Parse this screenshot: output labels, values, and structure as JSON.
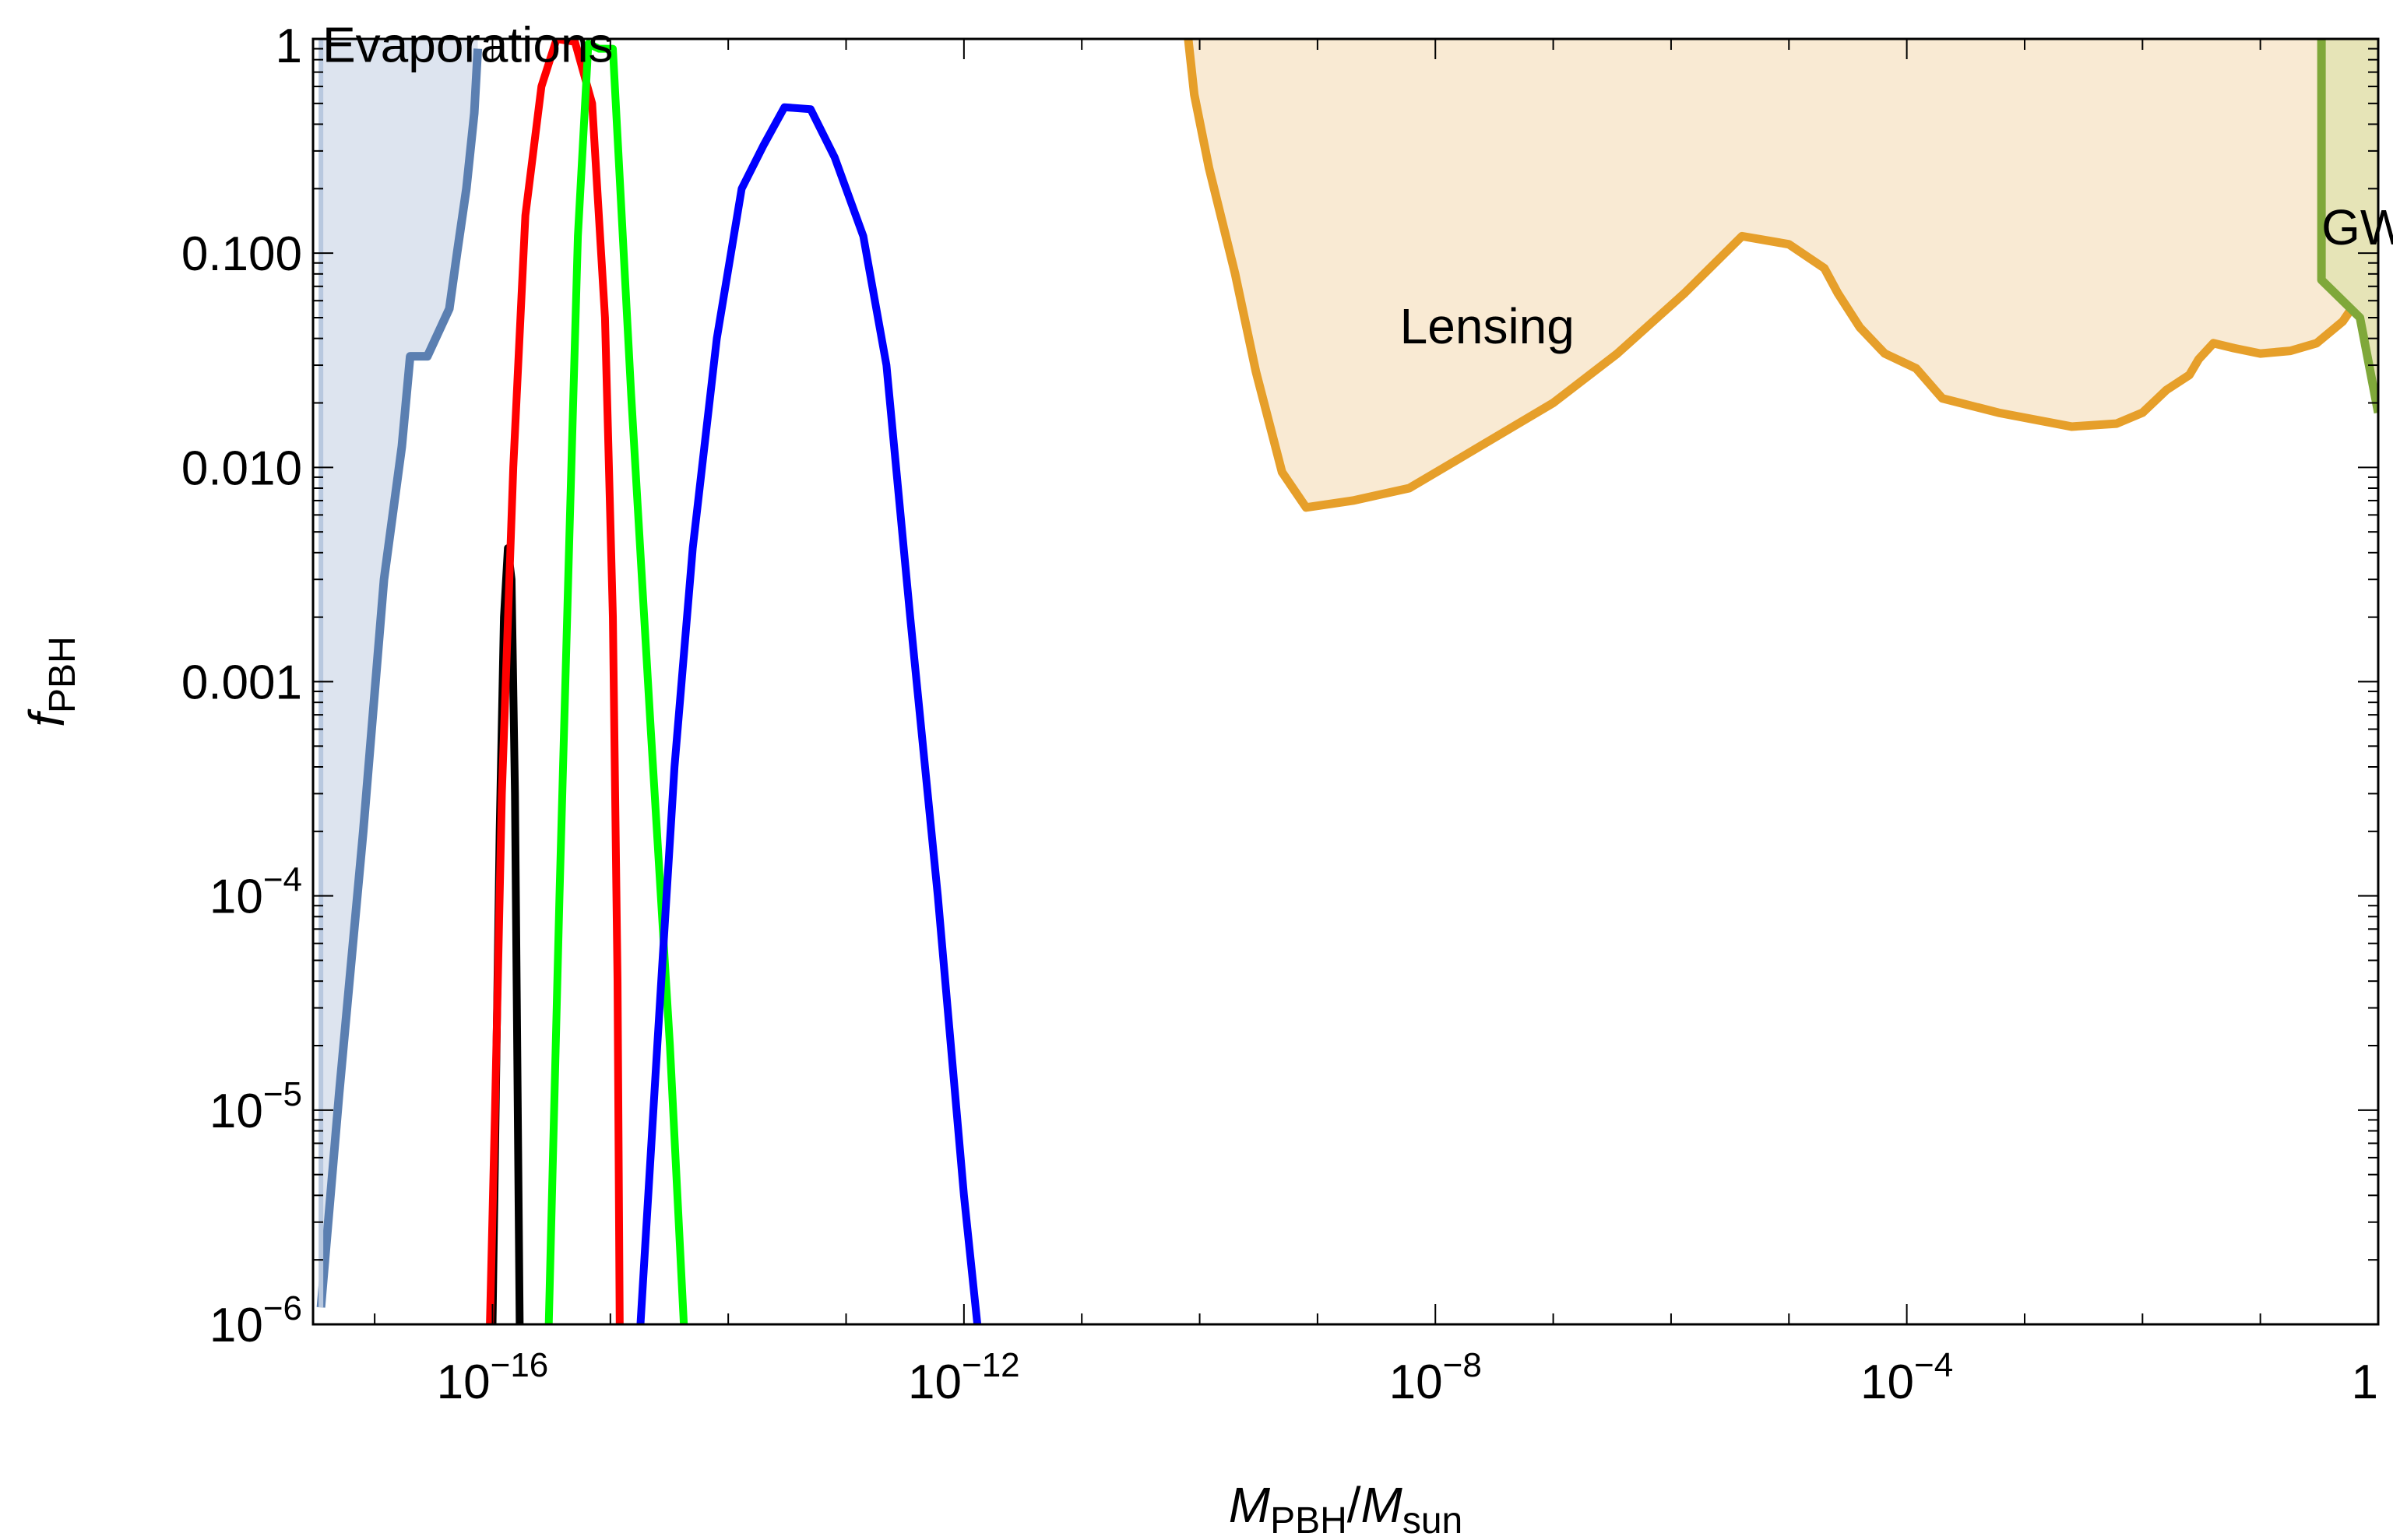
{
  "chart_data": {
    "type": "line",
    "xscale": "log",
    "yscale": "log",
    "xlim": [
      3e-18,
      1
    ],
    "ylim": [
      1e-06,
      1
    ],
    "x_ticks": [
      {
        "value": 1e-16,
        "base": "10",
        "exp": "−16"
      },
      {
        "value": 1e-12,
        "base": "10",
        "exp": "−12"
      },
      {
        "value": 1e-08,
        "base": "10",
        "exp": "−8"
      },
      {
        "value": 0.0001,
        "base": "10",
        "exp": "−4"
      },
      {
        "value": 1,
        "base": "1",
        "exp": ""
      }
    ],
    "y_ticks": [
      {
        "value": 1,
        "base": "1",
        "exp": ""
      },
      {
        "value": 0.1,
        "base": "0.100",
        "exp": ""
      },
      {
        "value": 0.01,
        "base": "0.010",
        "exp": ""
      },
      {
        "value": 0.001,
        "base": "0.001",
        "exp": ""
      },
      {
        "value": 0.0001,
        "base": "10",
        "exp": "−4"
      },
      {
        "value": 1e-05,
        "base": "10",
        "exp": "−5"
      },
      {
        "value": 1e-06,
        "base": "10",
        "exp": "−6"
      }
    ],
    "xlabel": {
      "m1": "M",
      "sub1": "PBH",
      "slash": "/",
      "m2": "M",
      "sub2": "sun"
    },
    "ylabel": {
      "main": "f",
      "sub": "PBH"
    },
    "regions": [
      {
        "name": "Evaporations",
        "label": "Evaporations",
        "label_at": [
          3.6e-18,
          0.78
        ],
        "color": "#5b7fb1",
        "fill": "#dde4ef",
        "boundary": [
          [
            3.5e-18,
            1.2e-06
          ],
          [
            5e-18,
            1.2e-05
          ],
          [
            8e-18,
            0.0002
          ],
          [
            1.2e-17,
            0.003
          ],
          [
            1.7e-17,
            0.0125
          ],
          [
            2e-17,
            0.033
          ],
          [
            2.8e-17,
            0.033
          ],
          [
            4.3e-17,
            0.055
          ],
          [
            5e-17,
            0.1
          ],
          [
            6e-17,
            0.2
          ],
          [
            7e-17,
            0.45
          ],
          [
            7.5e-17,
            0.9
          ]
        ]
      },
      {
        "name": "Lensing",
        "label": "Lensing",
        "label_at": [
          5e-09,
          0.038
        ],
        "color": "#e69f2a",
        "fill": "#f9ead3",
        "boundary": [
          [
            8e-11,
            1.0
          ],
          [
            9e-11,
            0.55
          ],
          [
            1.2e-10,
            0.25
          ],
          [
            2e-10,
            0.08
          ],
          [
            3e-10,
            0.028
          ],
          [
            5e-10,
            0.0095
          ],
          [
            8e-10,
            0.0065
          ],
          [
            2e-09,
            0.007
          ],
          [
            6e-09,
            0.008
          ],
          [
            1.6e-08,
            0.011
          ],
          [
            1e-07,
            0.02
          ],
          [
            3.5e-07,
            0.034
          ],
          [
            1.3e-06,
            0.065
          ],
          [
            4e-06,
            0.12
          ],
          [
            1e-05,
            0.11
          ],
          [
            2e-05,
            0.085
          ],
          [
            2.6e-05,
            0.065
          ],
          [
            4e-05,
            0.045
          ],
          [
            6.5e-05,
            0.034
          ],
          [
            0.00012,
            0.029
          ],
          [
            0.0002,
            0.021
          ],
          [
            0.0006,
            0.018
          ],
          [
            0.0025,
            0.0155
          ],
          [
            0.006,
            0.016
          ],
          [
            0.01,
            0.018
          ],
          [
            0.016,
            0.023
          ],
          [
            0.025,
            0.027
          ],
          [
            0.03,
            0.032
          ],
          [
            0.04,
            0.038
          ],
          [
            0.06,
            0.036
          ],
          [
            0.1,
            0.034
          ],
          [
            0.18,
            0.035
          ],
          [
            0.3,
            0.038
          ],
          [
            0.5,
            0.048
          ],
          [
            0.8,
            0.07
          ],
          [
            1,
            0.1
          ]
        ]
      },
      {
        "name": "GW",
        "label": "GW",
        "label_at": [
          0.33,
          0.11
        ],
        "color": "#7fa83a",
        "fill": "#e6e4b7",
        "boundary": [
          [
            0.33,
            1.0
          ],
          [
            0.33,
            0.075
          ],
          [
            0.7,
            0.05
          ],
          [
            1.0,
            0.018
          ]
        ]
      }
    ],
    "series": [
      {
        "color": "#000000",
        "points": [
          [
            1e-16,
            1e-06
          ],
          [
            1.15e-16,
            0.0002
          ],
          [
            1.25e-16,
            0.002
          ],
          [
            1.35e-16,
            0.0042
          ],
          [
            1.45e-16,
            0.003
          ],
          [
            1.55e-16,
            0.0003
          ],
          [
            1.7e-16,
            1e-06
          ]
        ]
      },
      {
        "color": "#ff0000",
        "points": [
          [
            9.5e-17,
            1e-06
          ],
          [
            1.05e-16,
            1e-05
          ],
          [
            1.2e-16,
            0.0003
          ],
          [
            1.5e-16,
            0.01
          ],
          [
            1.9e-16,
            0.15
          ],
          [
            2.6e-16,
            0.6
          ],
          [
            3.5e-16,
            1.0
          ],
          [
            5e-16,
            0.97
          ],
          [
            7e-16,
            0.5
          ],
          [
            9e-16,
            0.05
          ],
          [
            1.05e-15,
            0.002
          ],
          [
            1.15e-15,
            4e-05
          ],
          [
            1.2e-15,
            1e-06
          ]
        ]
      },
      {
        "color": "#00ff00",
        "points": [
          [
            3e-16,
            1e-06
          ],
          [
            3.7e-16,
            0.0001
          ],
          [
            4.5e-16,
            0.005
          ],
          [
            5.3e-16,
            0.12
          ],
          [
            6.5e-16,
            0.95
          ],
          [
            8e-16,
            0.9
          ],
          [
            1.05e-15,
            0.9
          ],
          [
            1.5e-15,
            0.022
          ],
          [
            2.2e-15,
            0.0006
          ],
          [
            3.2e-15,
            2e-05
          ],
          [
            4.2e-15,
            1e-06
          ]
        ]
      },
      {
        "color": "#0000ff",
        "points": [
          [
            1.8e-15,
            1e-06
          ],
          [
            2.5e-15,
            2e-05
          ],
          [
            3.5e-15,
            0.0004
          ],
          [
            5e-15,
            0.0042
          ],
          [
            8e-15,
            0.04
          ],
          [
            1.3e-14,
            0.2
          ],
          [
            2e-14,
            0.32
          ],
          [
            3e-14,
            0.48
          ],
          [
            5e-14,
            0.47
          ],
          [
            8e-14,
            0.28
          ],
          [
            1.4e-13,
            0.12
          ],
          [
            2.2e-13,
            0.03
          ],
          [
            3.5e-13,
            0.002
          ],
          [
            6e-13,
            0.0001
          ],
          [
            1e-12,
            4e-06
          ],
          [
            1.3e-12,
            1e-06
          ]
        ]
      }
    ]
  }
}
